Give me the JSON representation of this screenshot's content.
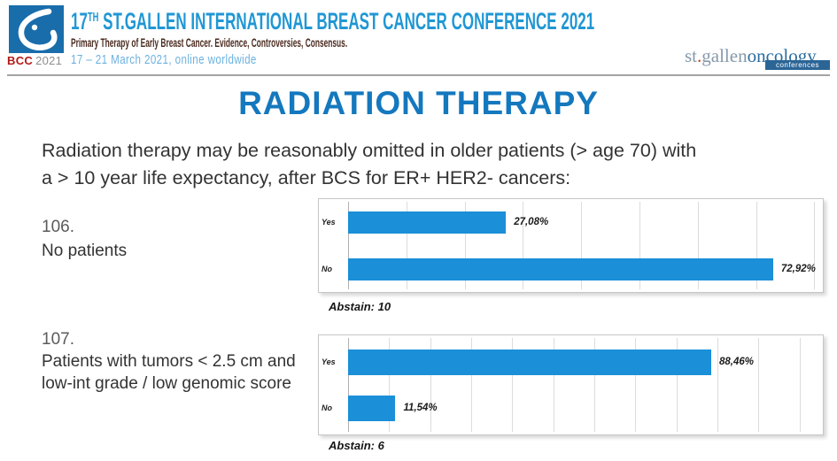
{
  "header": {
    "logo_caption_bcc": "BCC",
    "logo_caption_year": "2021",
    "title_num": "17",
    "title_sup": "TH",
    "title_main": " ST.GALLEN INTERNATIONAL BREAST CANCER CONFERENCE 2021",
    "subtitle": "Primary Therapy of Early Breast Cancer. Evidence, Controversies, Consensus.",
    "dates": "17 – 21 March 2021, online worldwide",
    "brand_left": "st",
    "brand_dot": ".",
    "brand_mid": "gallen",
    "brand_right": "oncology",
    "brand_badge": "conferences"
  },
  "slide": {
    "title": "RADIATION THERAPY",
    "question_line1": "Radiation therapy may be reasonably omitted in older patients (> age 70)  with",
    "question_line2": "a > 10 year life expectancy, after BCS for ER+ HER2- cancers:"
  },
  "colors": {
    "bar_blue": "#1b8fd8",
    "slide_title_blue": "#1478be",
    "header_title_blue": "#2097d4",
    "header_subtitle_maroon": "#4b2b20",
    "header_date_blue": "#6cb2e0",
    "bcc_red": "#b11917",
    "logo_square_blue": "#1a6dab"
  },
  "chart_data": [
    {
      "type": "bar",
      "orientation": "horizontal",
      "number": "106.",
      "label_lines": [
        "No patients"
      ],
      "categories": [
        "Yes",
        "No"
      ],
      "values": [
        27.08,
        72.92
      ],
      "value_labels": [
        "27,08%",
        "72,92%"
      ],
      "abstain_label": "Abstain: 10",
      "xlim": [
        0,
        81
      ],
      "grid_step": 10,
      "grid": true,
      "legend": "none",
      "bar_color": "#1b8fd8"
    },
    {
      "type": "bar",
      "orientation": "horizontal",
      "number": "107.",
      "label_lines": [
        "Patients with tumors < 2.5 cm and",
        "low-int grade / low genomic score"
      ],
      "categories": [
        "Yes",
        "No"
      ],
      "values": [
        88.46,
        11.54
      ],
      "value_labels": [
        "88,46%",
        "11,54%"
      ],
      "abstain_label": "Abstain: 6",
      "xlim": [
        0,
        115
      ],
      "grid_step": 10,
      "grid": true,
      "legend": "none",
      "bar_color": "#1b8fd8"
    }
  ]
}
